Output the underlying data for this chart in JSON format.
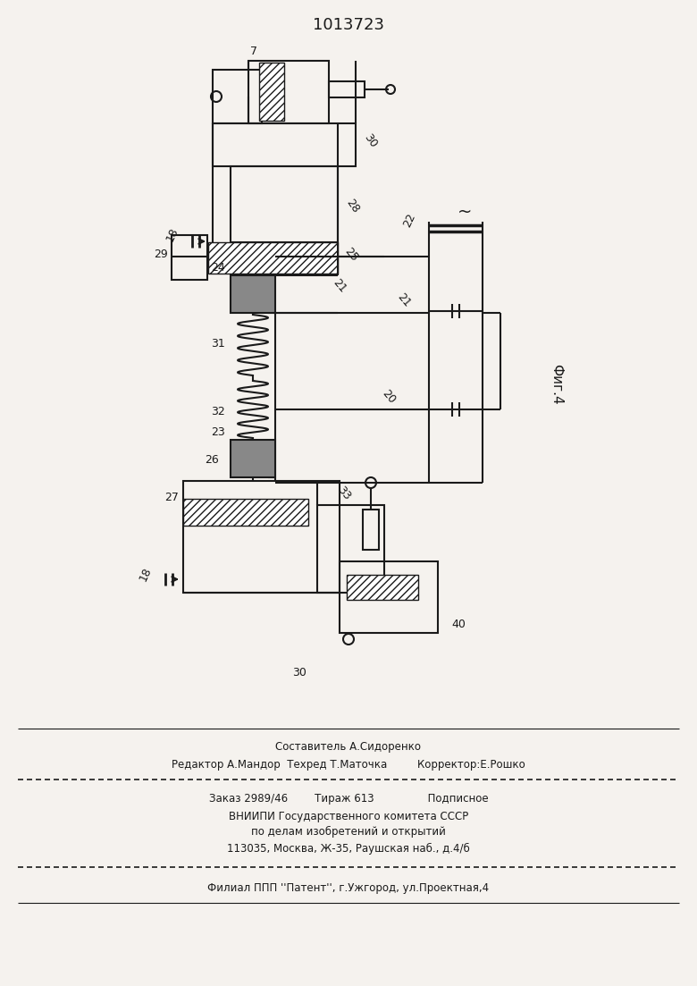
{
  "title": "1013723",
  "fig_label": "Фиг.4",
  "bg": "#f5f2ee",
  "lc": "#1a1a1a",
  "footer_text": [
    [
      390,
      835,
      "center",
      "Составитель А.Сидоренко"
    ],
    [
      390,
      856,
      "center",
      "Редактор А.Мандор  Техред Т.Маточка         Корректор:Е.Рошко"
    ],
    [
      390,
      893,
      "center",
      "Заказ 2989/46        Тираж 613                Подписное"
    ],
    [
      390,
      913,
      "center",
      "ВНИИПИ Государственного комитета СССР"
    ],
    [
      390,
      930,
      "center",
      "по делам изобретений и открытий"
    ],
    [
      390,
      949,
      "center",
      "113035, Москва, Ж-35, Раушская наб., д.4/б"
    ],
    [
      390,
      993,
      "center",
      "Филиал ППП ''Патент'', г.Ужгород, ул.Проектная,4"
    ]
  ]
}
